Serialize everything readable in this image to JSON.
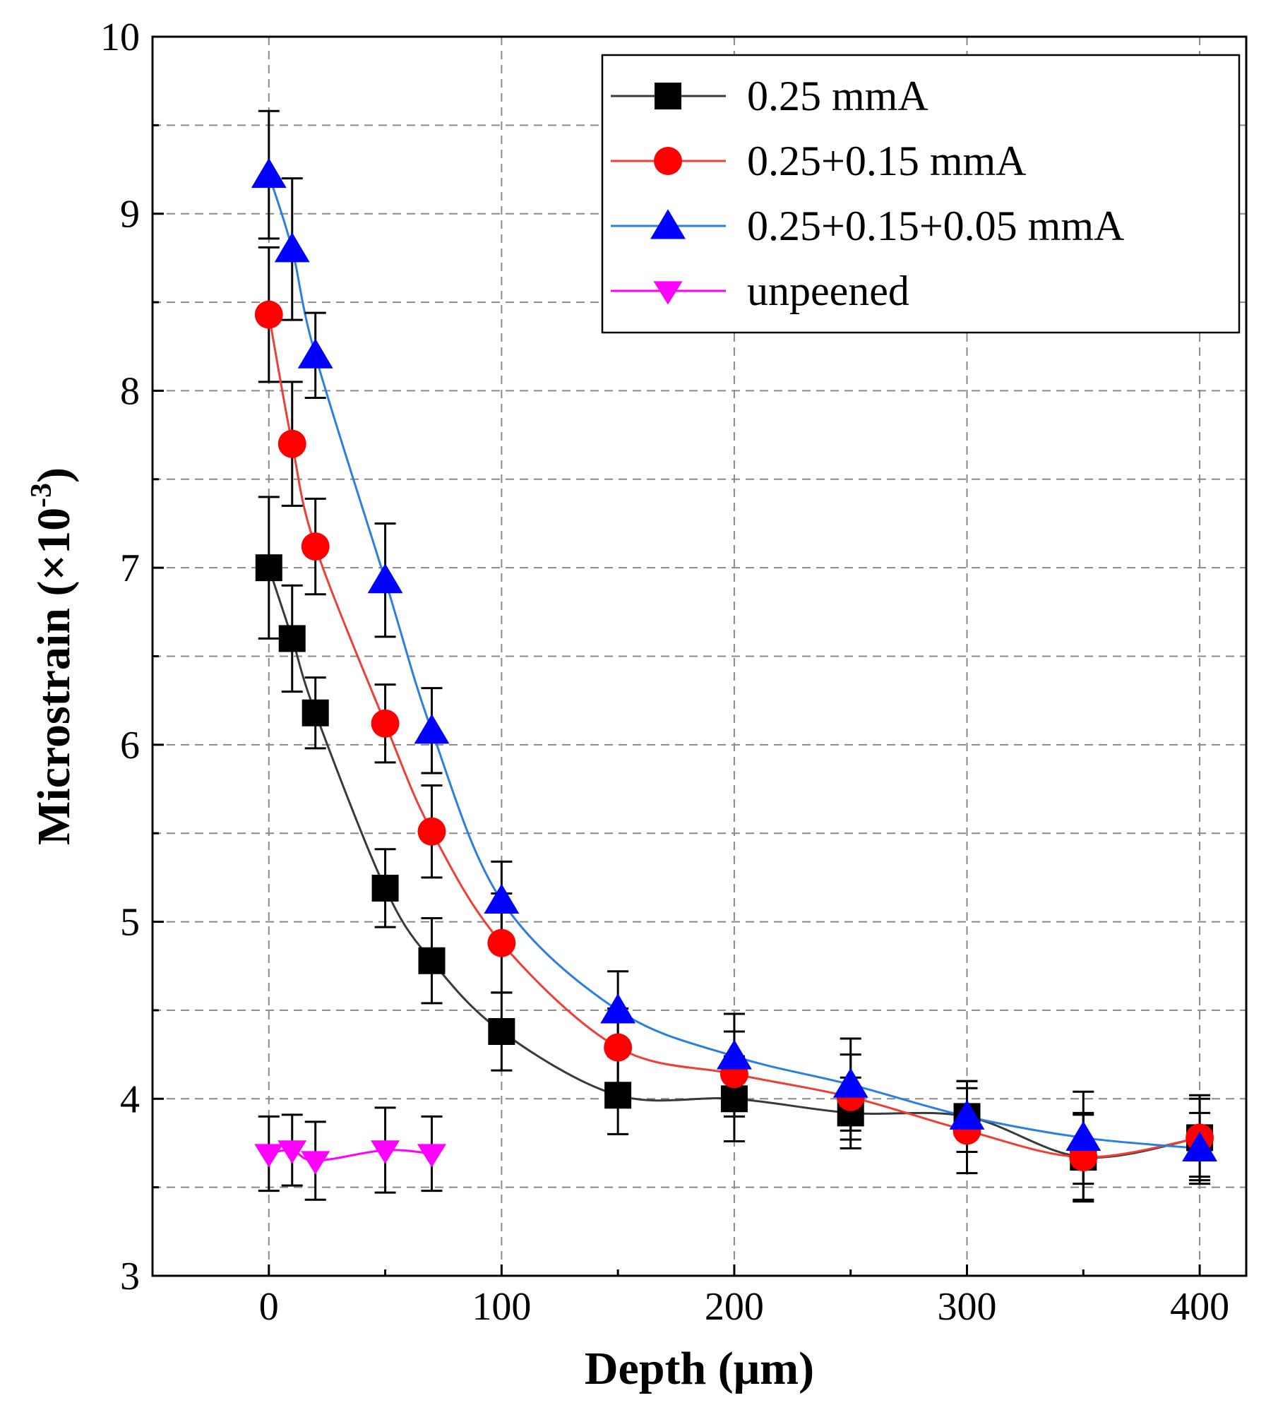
{
  "chart_data": {
    "type": "line",
    "title": "",
    "xlabel": "Depth (μm)",
    "ylabel_main": "Microstrain (×10",
    "ylabel_sup": "-3",
    "ylabel_close": ")",
    "xlim": [
      -50,
      420
    ],
    "ylim": [
      3,
      10
    ],
    "xticks": [
      0,
      100,
      200,
      300,
      400
    ],
    "xtick_labels": [
      "0",
      "100",
      "200",
      "300",
      "400"
    ],
    "yticks": [
      3,
      4,
      5,
      6,
      7,
      8,
      9,
      10
    ],
    "ytick_labels": [
      "3",
      "4",
      "5",
      "6",
      "7",
      "8",
      "9",
      "10"
    ],
    "grid": true,
    "legend_position": "top-right",
    "series": [
      {
        "name": "0.25 mmA",
        "color": "#000000",
        "line_color": "#3a3a3a",
        "marker": "square",
        "x": [
          0,
          10,
          20,
          50,
          70,
          100,
          150,
          200,
          250,
          300,
          350,
          400
        ],
        "y": [
          7.0,
          6.6,
          6.18,
          5.19,
          4.78,
          4.38,
          4.02,
          4.0,
          3.92,
          3.9,
          3.67,
          3.78
        ],
        "err": [
          0.4,
          0.3,
          0.2,
          0.22,
          0.24,
          0.22,
          0.22,
          0.24,
          0.2,
          0.2,
          0.25,
          0.22
        ]
      },
      {
        "name": "0.25+0.15 mmA",
        "color": "#ff0000",
        "line_color": "#ef3e36",
        "marker": "circle",
        "x": [
          0,
          10,
          20,
          50,
          70,
          100,
          150,
          200,
          250,
          300,
          350,
          400
        ],
        "y": [
          8.43,
          7.7,
          7.12,
          6.12,
          5.51,
          4.88,
          4.29,
          4.14,
          4.01,
          3.82,
          3.67,
          3.78
        ],
        "err": [
          0.38,
          0.35,
          0.27,
          0.22,
          0.26,
          0.28,
          0.22,
          0.24,
          0.24,
          0.24,
          0.24,
          0.24
        ]
      },
      {
        "name": "0.25+0.15+0.05 mmA",
        "color": "#0000ff",
        "line_color": "#2a7fe0",
        "marker": "triangle-up",
        "x": [
          0,
          10,
          20,
          50,
          70,
          100,
          150,
          200,
          250,
          300,
          350,
          400
        ],
        "y": [
          9.22,
          8.8,
          8.2,
          6.93,
          6.08,
          5.12,
          4.5,
          4.24,
          4.08,
          3.9,
          3.78,
          3.72
        ],
        "err": [
          0.36,
          0.4,
          0.24,
          0.32,
          0.24,
          0.22,
          0.22,
          0.24,
          0.26,
          0.2,
          0.26,
          0.2
        ]
      },
      {
        "name": "unpeened",
        "color": "#ff00ff",
        "line_color": "#ff00ff",
        "marker": "triangle-down",
        "x": [
          0,
          10,
          20,
          50,
          70
        ],
        "y": [
          3.69,
          3.71,
          3.65,
          3.71,
          3.69
        ],
        "err": [
          0.21,
          0.2,
          0.22,
          0.24,
          0.21
        ]
      }
    ]
  }
}
